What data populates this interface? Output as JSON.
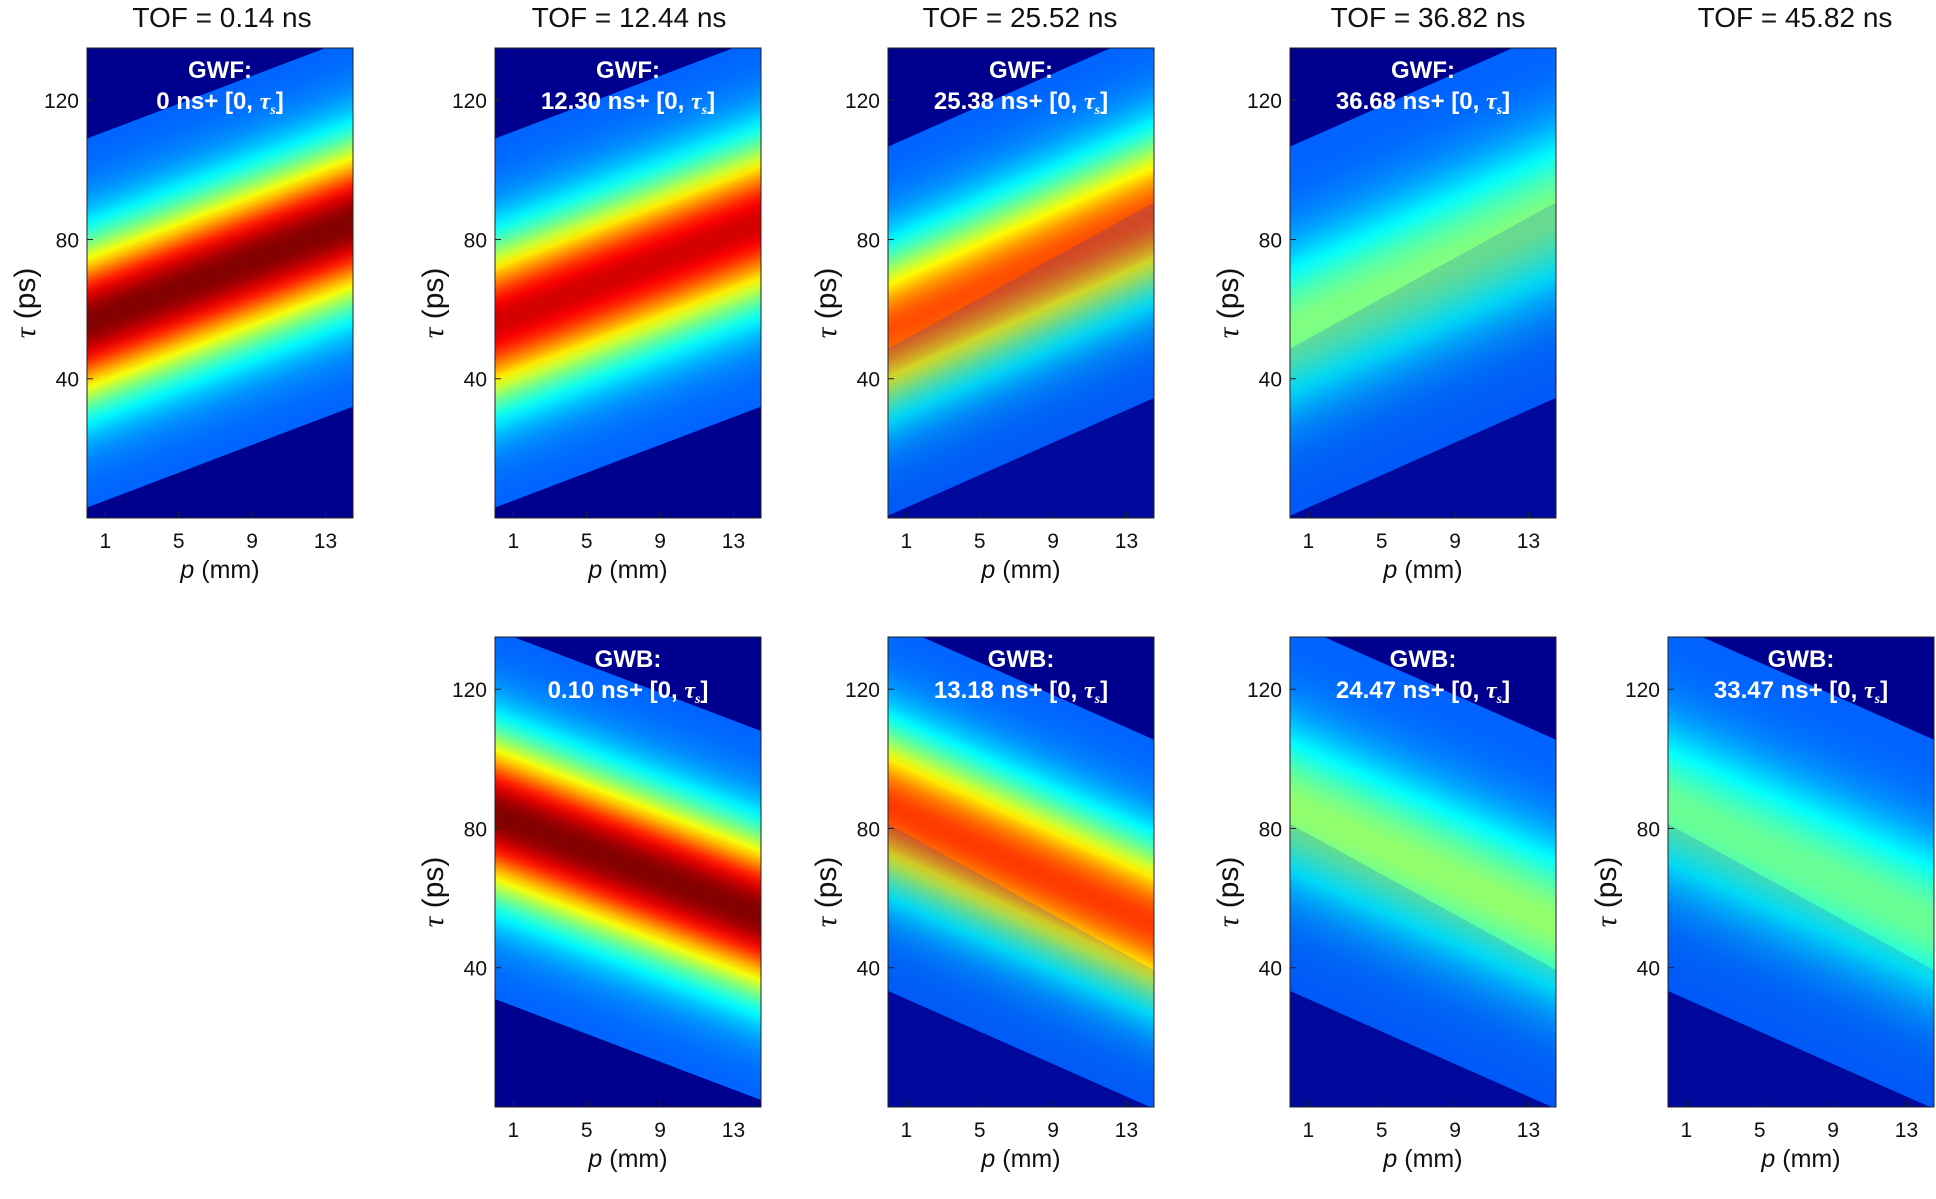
{
  "figure": {
    "columns": [
      {
        "title": "TOF = 0.14 ns"
      },
      {
        "title": "TOF = 12.44 ns"
      },
      {
        "title": "TOF = 25.52 ns"
      },
      {
        "title": "TOF = 36.82 ns"
      },
      {
        "title": "TOF = 45.82 ns"
      }
    ]
  },
  "chart_data": [
    {
      "type": "heatmap",
      "column": 0,
      "row": "top",
      "label_line1": "GWF:",
      "label_line2": "0 ns+ [0, ",
      "label_tau": "τ",
      "label_sub": "s",
      "label_end": "]",
      "xlabel_var": "p",
      "xlabel_unit": " (mm)",
      "ylabel_var": "τ",
      "ylabel_unit": " (ps)",
      "xticks": [
        "1",
        "5",
        "9",
        "13"
      ],
      "yticks": [
        "40",
        "80",
        "120"
      ],
      "xlim": [
        0,
        14.5
      ],
      "ylim": [
        0,
        135
      ],
      "ridge_direction": "rising",
      "ridge_tau_at_p1": 58,
      "ridge_tau_at_p13": 82,
      "peak_intensity": 1.0,
      "reflection": "none"
    },
    {
      "type": "heatmap",
      "column": 1,
      "row": "top",
      "label_line1": "GWF:",
      "label_line2": "12.30 ns+ [0, ",
      "label_tau": "τ",
      "label_sub": "s",
      "label_end": "]",
      "xlabel_var": "p",
      "xlabel_unit": " (mm)",
      "ylabel_var": "τ",
      "ylabel_unit": " (ps)",
      "xticks": [
        "1",
        "5",
        "9",
        "13"
      ],
      "yticks": [
        "40",
        "80",
        "120"
      ],
      "xlim": [
        0,
        14.5
      ],
      "ylim": [
        0,
        135
      ],
      "ridge_direction": "rising",
      "ridge_tau_at_p1": 58,
      "ridge_tau_at_p13": 82,
      "peak_intensity": 0.92,
      "reflection": "none"
    },
    {
      "type": "heatmap",
      "column": 2,
      "row": "top",
      "label_line1": "GWF:",
      "label_line2": "25.38 ns+ [0, ",
      "label_tau": "τ",
      "label_sub": "s",
      "label_end": "]",
      "xlabel_var": "p",
      "xlabel_unit": " (mm)",
      "ylabel_var": "τ",
      "ylabel_unit": " (ps)",
      "xticks": [
        "1",
        "5",
        "9",
        "13"
      ],
      "yticks": [
        "40",
        "80",
        "120"
      ],
      "xlim": [
        0,
        14.5
      ],
      "ylim": [
        0,
        135
      ],
      "ridge_direction": "rising",
      "ridge_tau_at_p1": 56,
      "ridge_tau_at_p13": 84,
      "peak_intensity": 0.8,
      "reflection": "weak"
    },
    {
      "type": "heatmap",
      "column": 3,
      "row": "top",
      "label_line1": "GWF:",
      "label_line2": "36.68 ns+ [0, ",
      "label_tau": "τ",
      "label_sub": "s",
      "label_end": "]",
      "xlabel_var": "p",
      "xlabel_unit": " (mm)",
      "ylabel_var": "τ",
      "ylabel_unit": " (ps)",
      "xticks": [
        "1",
        "5",
        "9",
        "13"
      ],
      "yticks": [
        "40",
        "80",
        "120"
      ],
      "xlim": [
        0,
        14.5
      ],
      "ylim": [
        0,
        135
      ],
      "ridge_direction": "rising",
      "ridge_tau_at_p1": 56,
      "ridge_tau_at_p13": 84,
      "peak_intensity": 0.5,
      "reflection": "weak"
    },
    {
      "type": "heatmap",
      "column": 1,
      "row": "bottom",
      "label_line1": "GWB:",
      "label_line2": "0.10 ns+ [0, ",
      "label_tau": "τ",
      "label_sub": "s",
      "label_end": "]",
      "xlabel_var": "p",
      "xlabel_unit": " (mm)",
      "ylabel_var": "τ",
      "ylabel_unit": " (ps)",
      "xticks": [
        "1",
        "5",
        "9",
        "13"
      ],
      "yticks": [
        "40",
        "80",
        "120"
      ],
      "xlim": [
        0,
        14.5
      ],
      "ylim": [
        0,
        135
      ],
      "ridge_direction": "falling",
      "ridge_tau_at_p1": 82,
      "ridge_tau_at_p13": 58,
      "peak_intensity": 1.0,
      "reflection": "none"
    },
    {
      "type": "heatmap",
      "column": 2,
      "row": "bottom",
      "label_line1": "GWB:",
      "label_line2": "13.18 ns+ [0, ",
      "label_tau": "τ",
      "label_sub": "s",
      "label_end": "]",
      "xlabel_var": "p",
      "xlabel_unit": " (mm)",
      "ylabel_var": "τ",
      "ylabel_unit": " (ps)",
      "xticks": [
        "1",
        "5",
        "9",
        "13"
      ],
      "yticks": [
        "40",
        "80",
        "120"
      ],
      "xlim": [
        0,
        14.5
      ],
      "ylim": [
        0,
        135
      ],
      "ridge_direction": "falling",
      "ridge_tau_at_p1": 84,
      "ridge_tau_at_p13": 56,
      "peak_intensity": 0.82,
      "reflection": "weak"
    },
    {
      "type": "heatmap",
      "column": 3,
      "row": "bottom",
      "label_line1": "GWB:",
      "label_line2": "24.47 ns+ [0, ",
      "label_tau": "τ",
      "label_sub": "s",
      "label_end": "]",
      "xlabel_var": "p",
      "xlabel_unit": " (mm)",
      "ylabel_var": "τ",
      "ylabel_unit": " (ps)",
      "xticks": [
        "1",
        "5",
        "9",
        "13"
      ],
      "yticks": [
        "40",
        "80",
        "120"
      ],
      "xlim": [
        0,
        14.5
      ],
      "ylim": [
        0,
        135
      ],
      "ridge_direction": "falling",
      "ridge_tau_at_p1": 84,
      "ridge_tau_at_p13": 56,
      "peak_intensity": 0.52,
      "reflection": "weak"
    },
    {
      "type": "heatmap",
      "column": 4,
      "row": "bottom",
      "label_line1": "GWB:",
      "label_line2": "33.47 ns+ [0, ",
      "label_tau": "τ",
      "label_sub": "s",
      "label_end": "]",
      "xlabel_var": "p",
      "xlabel_unit": " (mm)",
      "ylabel_var": "τ",
      "ylabel_unit": " (ps)",
      "xticks": [
        "1",
        "5",
        "9",
        "13"
      ],
      "yticks": [
        "40",
        "80",
        "120"
      ],
      "xlim": [
        0,
        14.5
      ],
      "ylim": [
        0,
        135
      ],
      "ridge_direction": "falling",
      "ridge_tau_at_p1": 84,
      "ridge_tau_at_p13": 56,
      "peak_intensity": 0.48,
      "reflection": "weak"
    }
  ]
}
